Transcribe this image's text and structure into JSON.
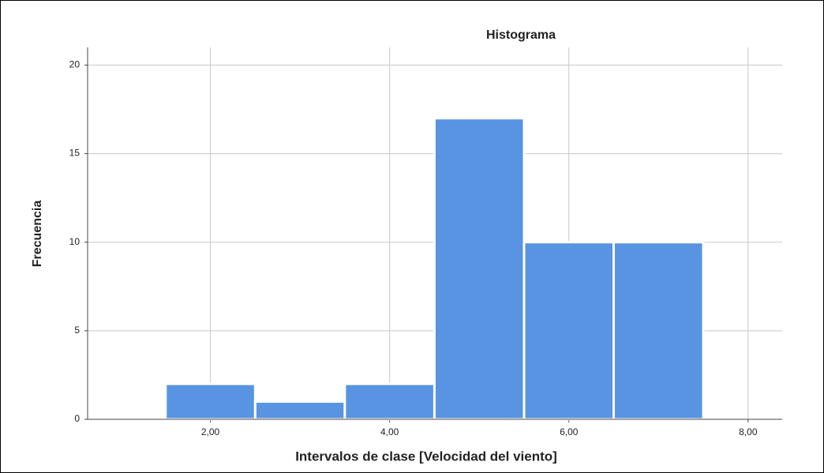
{
  "chart_data": {
    "type": "histogram",
    "title": "Histograma",
    "x_label": "Intervalos de clase [Velocidad del viento]",
    "y_label": "Frecuencia",
    "bins": [
      1.5,
      2.5,
      3.5,
      4.5,
      5.5,
      6.5,
      7.5
    ],
    "values": [
      2,
      1,
      2,
      17,
      10,
      10
    ],
    "color": "#5894e1",
    "xlim": [
      0.63,
      8.38
    ],
    "xticks": [
      {
        "value": 2,
        "label": "2,00"
      },
      {
        "value": 4,
        "label": "4,00"
      },
      {
        "value": 6,
        "label": "6,00"
      },
      {
        "value": 8,
        "label": "8,00"
      }
    ],
    "ylim": [
      0,
      21
    ],
    "yticks": [
      0,
      5,
      10,
      15,
      20
    ],
    "grid": true
  }
}
